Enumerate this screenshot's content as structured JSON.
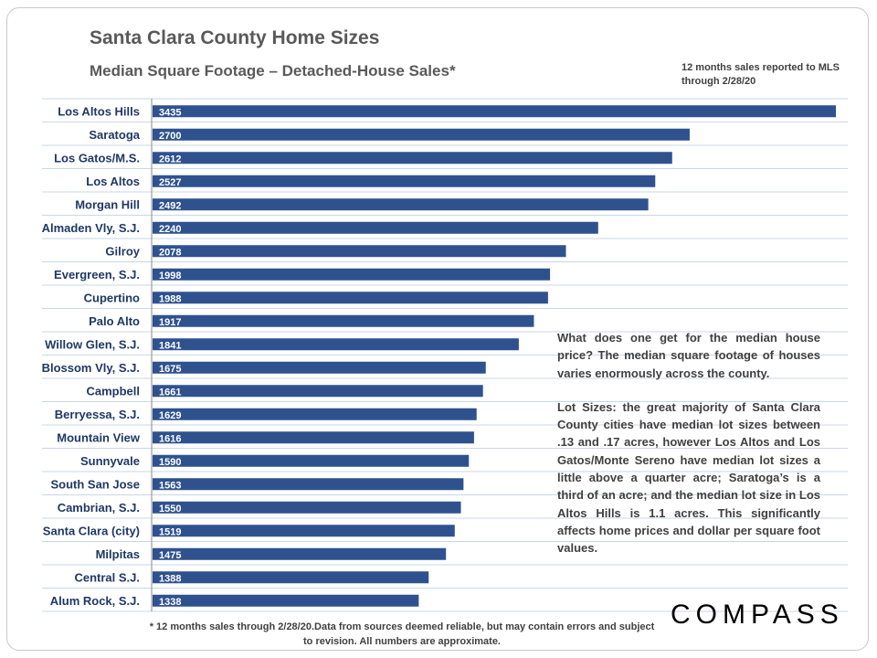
{
  "title": "Santa Clara County Home Sizes",
  "subtitle": "Median Square Footage – Detached-House Sales*",
  "note": "12 months sales reported to MLS through 2/28/20",
  "textbox": {
    "para1": "What does one get for the median house price? The median square footage of houses varies enormously across the county.",
    "para2": "Lot Sizes: the great majority of Santa Clara County cities have median lot sizes between .13 and .17 acres, however Los Altos and Los Gatos/Monte Sereno have median lot sizes a little above a quarter acre; Saratoga’s is a third of an acre; and the median lot size in Los Altos Hills is 1.1 acres. This significantly affects home prices and dollar per square foot values."
  },
  "footnote": "* 12 months sales through 2/28/20.Data from sources deemed reliable, but may contain errors and subject to revision. All numbers are approximate.",
  "logo": "COMPASS",
  "colors": {
    "bar": "#2f528f",
    "label": "#1f3864",
    "grid": "#c9d7e6"
  },
  "chart_data": {
    "type": "bar",
    "orientation": "horizontal",
    "title": "Santa Clara County Home Sizes",
    "subtitle": "Median Square Footage – Detached-House Sales*",
    "categories": [
      "Los Altos Hills",
      "Saratoga",
      "Los Gatos/M.S.",
      "Los Altos",
      "Morgan Hill",
      "Almaden Vly, S.J.",
      "Gilroy",
      "Evergreen, S.J.",
      "Cupertino",
      "Palo Alto",
      "Willow Glen, S.J.",
      "Blossom Vly, S.J.",
      "Campbell",
      "Berryessa, S.J.",
      "Mountain View",
      "Sunnyvale",
      "South San Jose",
      "Cambrian, S.J.",
      "Santa Clara (city)",
      "Milpitas",
      "Central S.J.",
      "Alum Rock, S.J."
    ],
    "values": [
      3435,
      2700,
      2612,
      2527,
      2492,
      2240,
      2078,
      1998,
      1988,
      1917,
      1841,
      1675,
      1661,
      1629,
      1616,
      1590,
      1563,
      1550,
      1519,
      1475,
      1388,
      1338
    ],
    "xlim": [
      0,
      3435
    ],
    "grid": true,
    "data_labels": "inside-base"
  }
}
